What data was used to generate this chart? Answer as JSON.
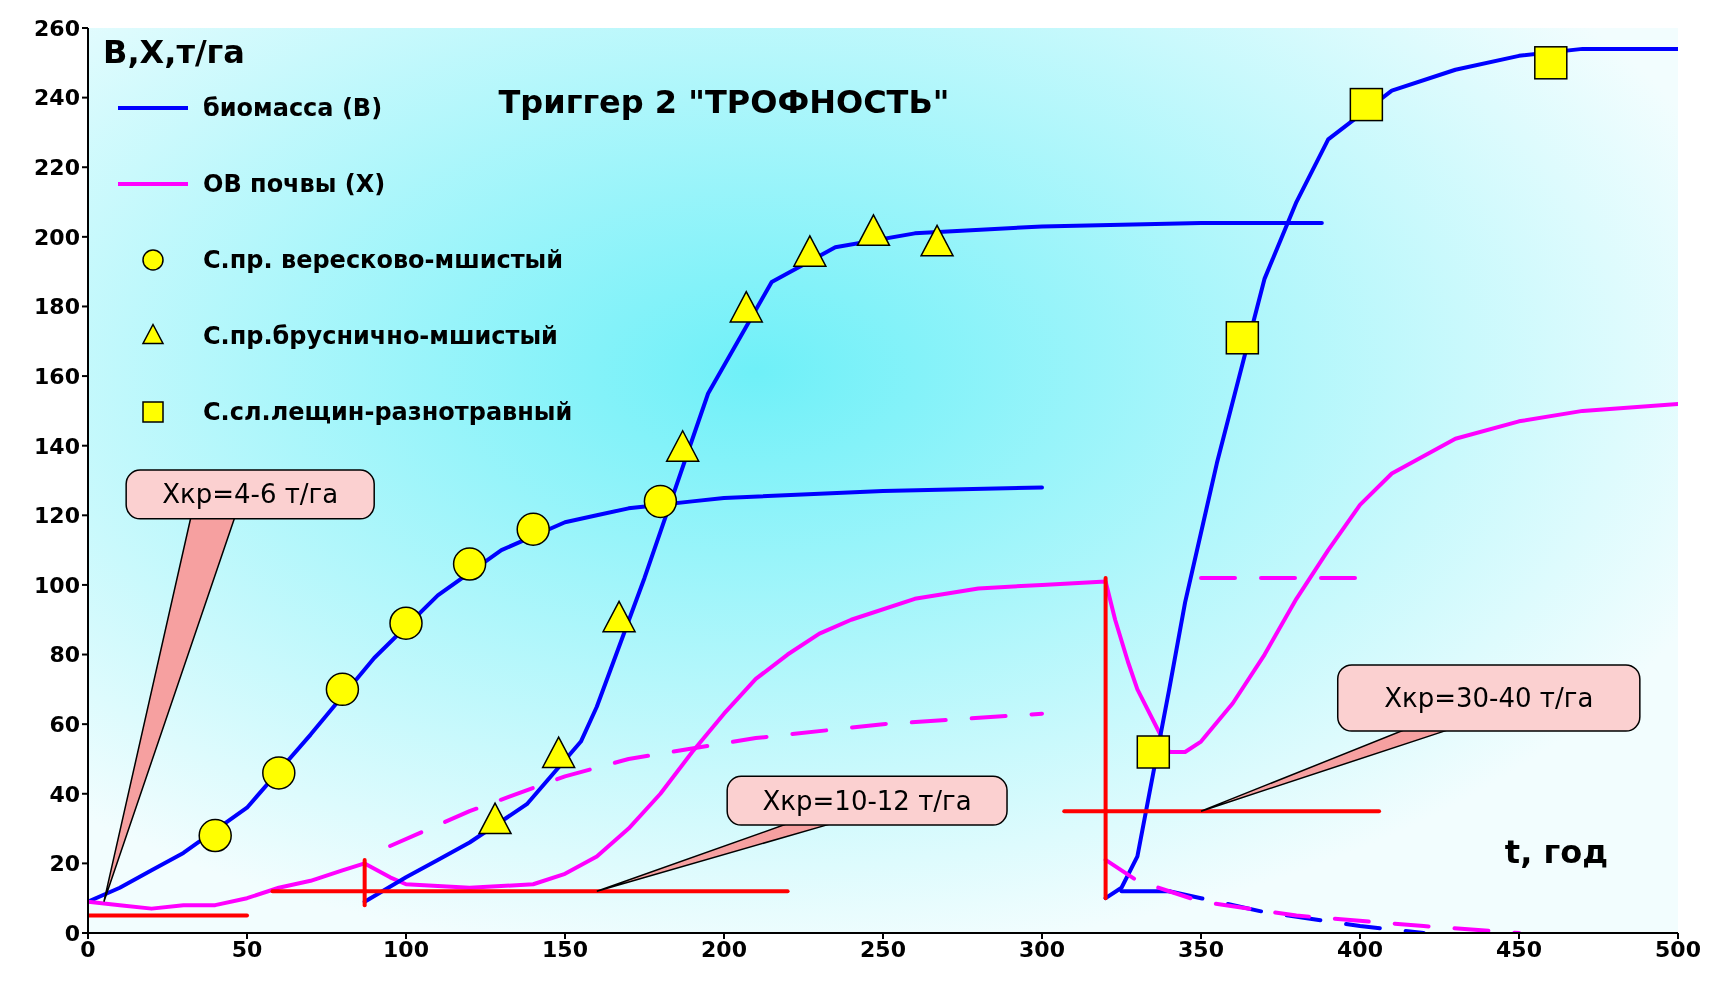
{
  "chart_data": {
    "type": "line",
    "title": "Триггер 2 \"ТРОФНОСТЬ\"",
    "xlabel": "t, год",
    "ylabel": "B,X,т/га",
    "xlim": [
      0,
      500
    ],
    "xticks": [
      0,
      50,
      100,
      150,
      200,
      250,
      300,
      350,
      400,
      450,
      500
    ],
    "ylim": [
      0,
      260
    ],
    "yticks": [
      0,
      20,
      40,
      60,
      80,
      100,
      120,
      140,
      160,
      180,
      200,
      220,
      240,
      260
    ],
    "legend": "top left",
    "annotations": [
      {
        "text": "Xкр=4-6 т/га",
        "x": 5,
        "y": 9
      },
      {
        "text": "Xкр=10-12 т/га",
        "x": 160,
        "y": 12
      },
      {
        "text": "Xкр=30-40 т/га",
        "x": 350,
        "y": 35
      }
    ],
    "series": [
      {
        "name": "биомасса (B)",
        "color": "#0000ff",
        "x": [
          0,
          10,
          20,
          30,
          50,
          70,
          90,
          110,
          130,
          150,
          160,
          170,
          190,
          200,
          250,
          300
        ],
        "values": [
          9,
          13,
          18,
          23,
          36,
          57,
          79,
          97,
          110,
          118,
          120,
          122,
          124,
          125,
          127,
          128
        ]
      },
      {
        "name": "ОВ почвы (X)",
        "color": "#ff00ff",
        "x": [
          0,
          10,
          20,
          30,
          40,
          50,
          60,
          70,
          80,
          87,
          95,
          100,
          120,
          140,
          150,
          160,
          170,
          180,
          190,
          200,
          210,
          220,
          230,
          240,
          260,
          280,
          300,
          320,
          323,
          327,
          330,
          340,
          345,
          350,
          360,
          370,
          380,
          390,
          400,
          410,
          430,
          450,
          470,
          500
        ],
        "values": [
          9,
          8,
          7,
          8,
          8,
          10,
          13,
          15,
          18,
          20,
          16,
          14,
          13,
          14,
          17,
          22,
          30,
          40,
          52,
          63,
          73,
          80,
          86,
          90,
          96,
          99,
          100,
          101,
          90,
          78,
          70,
          52,
          52,
          55,
          66,
          80,
          96,
          110,
          123,
          132,
          142,
          147,
          150,
          152
        ]
      },
      {
        "name": "С.пр. вересково-мшистый",
        "type": "scatter",
        "marker": "circle",
        "color": "#ffff00",
        "x": [
          40,
          60,
          80,
          100,
          120,
          140,
          180
        ],
        "values": [
          28,
          46,
          70,
          89,
          106,
          116,
          124
        ]
      },
      {
        "name": "С.пр.бруснично-мшистый",
        "type": "scatter",
        "marker": "triangle",
        "color": "#ffff00",
        "x": [
          128,
          148,
          167,
          187,
          207,
          227,
          247,
          267
        ],
        "values": [
          32,
          51,
          90,
          139,
          179,
          195,
          201,
          198
        ]
      },
      {
        "name": "С.сл.лещин-разнотравный",
        "type": "scatter",
        "marker": "square",
        "color": "#ffff00",
        "x": [
          335,
          363,
          402,
          460
        ],
        "values": [
          52,
          171,
          238,
          250
        ]
      },
      {
        "color": "#0000ff",
        "x": [
          87,
          100,
          110,
          120,
          138,
          155,
          160,
          175,
          195,
          215,
          235,
          260,
          300,
          350,
          388
        ],
        "values": [
          9,
          16,
          21,
          26,
          37,
          55,
          65,
          102,
          155,
          187,
          197,
          201,
          203,
          204,
          204
        ]
      },
      {
        "color": "#0000ff",
        "x": [
          320,
          325,
          330,
          340,
          345,
          350,
          355,
          370,
          380,
          390,
          410,
          430,
          450,
          470,
          500
        ],
        "values": [
          10,
          13,
          22,
          70,
          95,
          115,
          135,
          188,
          210,
          228,
          242,
          248,
          252,
          254,
          254
        ]
      },
      {
        "color": "#0000ff",
        "x": [
          325,
          340
        ],
        "values": [
          12,
          12
        ]
      },
      {
        "color": "#0000ff",
        "line_style": "dashed",
        "x": [
          340,
          350,
          370,
          400,
          420
        ],
        "values": [
          12,
          10,
          6,
          2,
          0
        ]
      },
      {
        "color": "#ff00ff",
        "line_style": "dashed",
        "x": [
          95,
          120,
          150,
          170,
          210,
          250,
          300
        ],
        "values": [
          25,
          35,
          45,
          50,
          56,
          60,
          63
        ]
      },
      {
        "color": "#ff00ff",
        "line_style": "dashed",
        "x": [
          350,
          400
        ],
        "values": [
          102,
          102
        ]
      },
      {
        "color": "#ff00ff",
        "line_style": "dashed",
        "x": [
          320,
          330,
          340,
          350,
          380,
          420,
          450
        ],
        "values": [
          21,
          15,
          12,
          9,
          5,
          2,
          0
        ]
      },
      {
        "color": "#ff0000",
        "x": [
          0,
          50
        ],
        "values": [
          5,
          5
        ]
      },
      {
        "color": "#ff0000",
        "x": [
          58,
          220
        ],
        "values": [
          12,
          12
        ]
      },
      {
        "color": "#ff0000",
        "x": [
          307,
          406
        ],
        "values": [
          35,
          35
        ]
      },
      {
        "color": "#ff0000",
        "x": [
          87,
          87
        ],
        "values": [
          8,
          21
        ]
      },
      {
        "color": "#ff0000",
        "x": [
          320,
          320
        ],
        "values": [
          10,
          102
        ]
      }
    ]
  }
}
